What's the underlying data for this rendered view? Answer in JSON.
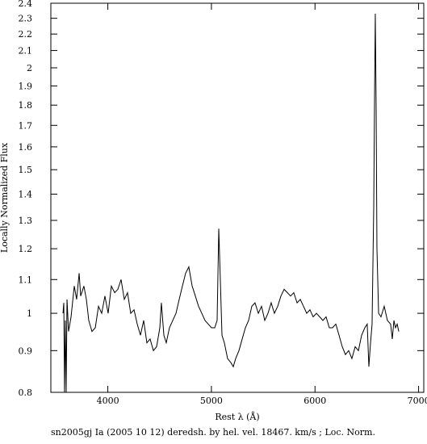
{
  "chart_data": {
    "type": "line",
    "x_label": "Rest λ (Å)",
    "y_label": "Locally Normalized Flux",
    "caption": "sn2005gj Ia (2005 10 12) deredsh. by hel. vel. 18467. km/s ;  Loc. Norm.",
    "color": "#000000",
    "log_y": true,
    "xlim": [
      3450,
      7050
    ],
    "xticks": [
      4000,
      5000,
      6000,
      7000
    ],
    "ylim": [
      0.8,
      2.4
    ],
    "yticks": [
      0.8,
      0.9,
      1,
      1.1,
      1.2,
      1.3,
      1.4,
      1.5,
      1.6,
      1.7,
      1.8,
      1.9,
      2,
      2.1,
      2.2,
      2.3,
      2.4
    ],
    "x": [
      3567,
      3575,
      3582,
      3590,
      3598,
      3606,
      3621,
      3645,
      3676,
      3699,
      3723,
      3738,
      3769,
      3793,
      3816,
      3847,
      3879,
      3910,
      3941,
      3972,
      4003,
      4034,
      4066,
      4097,
      4128,
      4159,
      4190,
      4221,
      4253,
      4284,
      4315,
      4346,
      4377,
      4408,
      4440,
      4471,
      4502,
      4517,
      4541,
      4564,
      4595,
      4627,
      4658,
      4689,
      4720,
      4751,
      4782,
      4814,
      4845,
      4876,
      4907,
      4938,
      4969,
      5001,
      5032,
      5055,
      5071,
      5086,
      5102,
      5125,
      5156,
      5188,
      5211,
      5234,
      5266,
      5297,
      5328,
      5359,
      5390,
      5421,
      5453,
      5484,
      5515,
      5546,
      5577,
      5608,
      5640,
      5671,
      5702,
      5733,
      5764,
      5795,
      5827,
      5858,
      5889,
      5920,
      5951,
      5982,
      6014,
      6045,
      6076,
      6107,
      6138,
      6169,
      6201,
      6232,
      6263,
      6294,
      6325,
      6356,
      6388,
      6419,
      6450,
      6481,
      6504,
      6520,
      6536,
      6551,
      6567,
      6575,
      6582,
      6590,
      6598,
      6614,
      6637,
      6668,
      6699,
      6730,
      6746,
      6762,
      6777,
      6793,
      6809
    ],
    "values": [
      1.0,
      1.03,
      0.8,
      0.98,
      0.8,
      1.04,
      0.95,
      0.99,
      1.08,
      1.04,
      1.12,
      1.05,
      1.08,
      1.04,
      0.98,
      0.95,
      0.96,
      1.02,
      1.0,
      1.05,
      1.0,
      1.08,
      1.06,
      1.07,
      1.1,
      1.04,
      1.06,
      1.0,
      1.01,
      0.97,
      0.94,
      0.98,
      0.92,
      0.93,
      0.9,
      0.91,
      0.96,
      1.03,
      0.94,
      0.92,
      0.96,
      0.98,
      1.0,
      1.04,
      1.08,
      1.12,
      1.14,
      1.08,
      1.05,
      1.02,
      1.0,
      0.98,
      0.97,
      0.96,
      0.96,
      0.98,
      1.27,
      1.1,
      0.94,
      0.92,
      0.88,
      0.87,
      0.86,
      0.88,
      0.9,
      0.93,
      0.96,
      0.98,
      1.02,
      1.03,
      1.0,
      1.02,
      0.98,
      1.0,
      1.03,
      1.0,
      1.02,
      1.05,
      1.07,
      1.06,
      1.05,
      1.06,
      1.03,
      1.04,
      1.02,
      1.0,
      1.01,
      0.99,
      1.0,
      0.99,
      0.98,
      0.99,
      0.96,
      0.96,
      0.97,
      0.94,
      0.91,
      0.89,
      0.9,
      0.88,
      0.91,
      0.9,
      0.94,
      0.96,
      0.97,
      0.86,
      0.92,
      0.97,
      1.35,
      1.85,
      2.33,
      1.8,
      1.2,
      1.0,
      0.99,
      1.02,
      0.98,
      0.97,
      0.93,
      0.98,
      0.96,
      0.97,
      0.95
    ]
  }
}
